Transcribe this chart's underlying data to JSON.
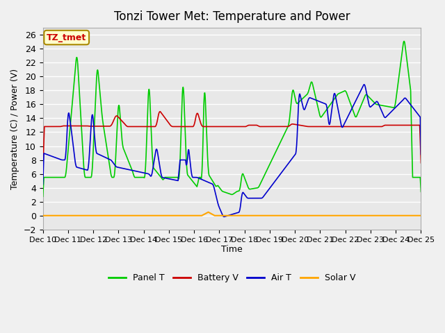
{
  "title": "Tonzi Tower Met: Temperature and Power",
  "xlabel": "Time",
  "ylabel": "Temperature (C) / Power (V)",
  "label_tag": "TZ_tmet",
  "ylim": [
    -2,
    27
  ],
  "yticks": [
    -2,
    0,
    2,
    4,
    6,
    8,
    10,
    12,
    14,
    16,
    18,
    20,
    22,
    24,
    26
  ],
  "xtick_labels": [
    "Dec 10",
    "Dec 11",
    "Dec 12",
    "Dec 13",
    "Dec 14",
    "Dec 15",
    "Dec 16",
    "Dec 17",
    "Dec 18",
    "Dec 19",
    "Dec 20",
    "Dec 21",
    "Dec 22",
    "Dec 23",
    "Dec 24",
    "Dec 25"
  ],
  "colors": {
    "panel_t": "#00cc00",
    "battery_v": "#cc0000",
    "air_t": "#0000cc",
    "solar_v": "#ffa500",
    "background": "#e8e8e8",
    "grid": "#ffffff"
  },
  "legend": [
    "Panel T",
    "Battery V",
    "Air T",
    "Solar V"
  ]
}
